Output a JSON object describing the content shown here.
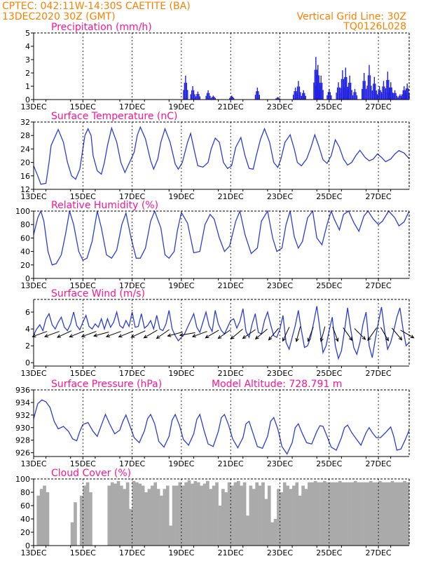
{
  "header": {
    "line1_left": "CPTEC:  042:11W-14:30S  CAETITE (BA)",
    "line2_left": "13DEC2020 30Z (GMT)",
    "line1_right": "Vertical Grid Line: 30Z",
    "line2_right": "TQ0126L028"
  },
  "colors": {
    "line": "#2b3fd6",
    "bars": "#2020e0",
    "cloud": "#aaaaaa",
    "arrow": "#000000",
    "title": "#ff1493",
    "header": "#ff8000"
  },
  "chart_data": [
    {
      "id": "precip",
      "type": "bar",
      "title": "Precipitation (mm/h)",
      "ylim": [
        0,
        5
      ],
      "yticks": [
        "0",
        "1",
        "2",
        "3",
        "4",
        "5"
      ],
      "xlim": [
        0,
        366
      ],
      "xtick_pos": [
        0,
        48,
        96,
        144,
        192,
        240,
        288,
        336
      ],
      "xtick_labels": [
        "13DEC",
        "15DEC",
        "17DEC",
        "19DEC",
        "21DEC",
        "23DEC",
        "25DEC",
        "27DEC"
      ],
      "peaks": [
        [
          148,
          1.8
        ],
        [
          155,
          1.0
        ],
        [
          160,
          0.6
        ],
        [
          170,
          0.7
        ],
        [
          175,
          0.3
        ],
        [
          193,
          0.3
        ],
        [
          218,
          0.9
        ],
        [
          238,
          0.2
        ],
        [
          255,
          0.9
        ],
        [
          258,
          1.4
        ],
        [
          263,
          0.7
        ],
        [
          275,
          3.2
        ],
        [
          277,
          2.6
        ],
        [
          280,
          1.8
        ],
        [
          288,
          0.8
        ],
        [
          297,
          1.3
        ],
        [
          301,
          2.2
        ],
        [
          304,
          2.4
        ],
        [
          308,
          1.8
        ],
        [
          313,
          0.8
        ],
        [
          322,
          2.0
        ],
        [
          327,
          2.6
        ],
        [
          332,
          1.7
        ],
        [
          337,
          1.0
        ],
        [
          341,
          1.4
        ],
        [
          345,
          2.1
        ],
        [
          348,
          1.3
        ],
        [
          352,
          0.7
        ],
        [
          357,
          0.4
        ],
        [
          361,
          1.0
        ],
        [
          364,
          1.2
        ]
      ]
    },
    {
      "id": "temp",
      "type": "line",
      "title": "Surface Temperature (nC)",
      "ylim": [
        12,
        32
      ],
      "yticks": [
        "12",
        "16",
        "20",
        "24",
        "28",
        "32"
      ],
      "xlim": [
        0,
        366
      ],
      "xtick_pos": [
        0,
        48,
        96,
        144,
        192,
        240,
        288,
        336
      ],
      "xtick_labels": [
        "13DEC",
        "15DEC",
        "17DEC",
        "19DEC",
        "21DEC",
        "23DEC",
        "25DEC",
        "27DEC"
      ],
      "x": [
        0,
        4,
        7,
        12,
        15,
        17,
        24,
        29,
        33,
        37,
        41,
        45,
        48,
        50,
        53,
        56,
        58,
        62,
        66,
        69,
        72,
        76,
        81,
        85,
        89,
        92,
        98,
        101,
        104,
        109,
        114,
        117,
        121,
        124,
        128,
        133,
        138,
        141,
        145,
        150,
        153,
        157,
        160,
        165,
        170,
        173,
        177,
        181,
        185,
        189,
        193,
        197,
        202,
        206,
        210,
        214,
        217,
        221,
        225,
        230,
        234,
        238,
        241,
        245,
        250,
        254,
        257,
        261,
        266,
        270,
        274,
        278,
        282,
        286,
        290,
        294,
        298,
        302,
        306,
        310,
        314,
        318,
        323,
        327,
        331,
        335,
        339,
        343,
        348,
        352,
        356,
        361,
        366
      ],
      "y": [
        19,
        16,
        13.5,
        13.8,
        20,
        25,
        29.8,
        26,
        20,
        16,
        15,
        18,
        24,
        28,
        30,
        28,
        22,
        17.5,
        16.5,
        20,
        25,
        30.2,
        26,
        20,
        17,
        19,
        23,
        28,
        30.5,
        27,
        20.5,
        18,
        21,
        26,
        30,
        26,
        19.5,
        18,
        20,
        26,
        28.6,
        23,
        19,
        18.6,
        20,
        24,
        27.2,
        26,
        20,
        18.2,
        19,
        24.5,
        27.4,
        22,
        18.2,
        18,
        22,
        26.8,
        30,
        26,
        20,
        18.5,
        21,
        26,
        28.2,
        24,
        20,
        19,
        21,
        24.2,
        28.2,
        24.8,
        20.8,
        19.7,
        22,
        26.7,
        24.5,
        21,
        19.2,
        20,
        22,
        23.6,
        21.5,
        20.5,
        21,
        22.5,
        21.5,
        20.2,
        21,
        22.5,
        23.5,
        22.8,
        21.1
      ]
    },
    {
      "id": "rh",
      "type": "line",
      "title": "Relative Humidity (%)",
      "ylim": [
        0,
        100
      ],
      "yticks": [
        "0",
        "20",
        "40",
        "60",
        "80",
        "100"
      ],
      "xlim": [
        0,
        366
      ],
      "xtick_pos": [
        0,
        48,
        96,
        144,
        192,
        240,
        288,
        336
      ],
      "xtick_labels": [
        "13DEC",
        "15DEC",
        "17DEC",
        "19DEC",
        "21DEC",
        "23DEC",
        "25DEC",
        "27DEC"
      ],
      "x": [
        0,
        4,
        7,
        10,
        14,
        18,
        22,
        27,
        31,
        35,
        39,
        44,
        48,
        52,
        57,
        62,
        66,
        71,
        76,
        81,
        86,
        90,
        95,
        100,
        104,
        109,
        114,
        118,
        124,
        128,
        132,
        137,
        140,
        144,
        150,
        156,
        162,
        167,
        172,
        176,
        181,
        186,
        191,
        197,
        201,
        206,
        212,
        218,
        222,
        228,
        233,
        237,
        242,
        246,
        250,
        254,
        258,
        262,
        267,
        272,
        276,
        281,
        286,
        290,
        293,
        298,
        302,
        307,
        312,
        317,
        322,
        326,
        331,
        336,
        340,
        346,
        352,
        356,
        361,
        366
      ],
      "y": [
        65,
        90,
        100,
        85,
        40,
        20,
        22,
        35,
        65,
        100,
        80,
        40,
        27,
        30,
        55,
        100,
        75,
        35,
        30,
        42,
        80,
        97,
        60,
        30,
        30,
        45,
        85,
        100,
        75,
        35,
        30,
        40,
        70,
        98,
        82,
        38,
        40,
        80,
        95,
        88,
        60,
        40,
        48,
        85,
        100,
        65,
        37,
        45,
        85,
        100,
        60,
        40,
        45,
        80,
        100,
        62,
        45,
        55,
        90,
        100,
        60,
        50,
        80,
        100,
        88,
        72,
        95,
        100,
        83,
        70,
        93,
        100,
        88,
        80,
        85,
        100,
        90,
        78,
        84,
        100
      ]
    },
    {
      "id": "wind",
      "type": "line",
      "title": "Surface Wind (m/s)",
      "ylim": [
        -0.4,
        7.5
      ],
      "yticks": [
        "0",
        "2",
        "4",
        "6"
      ],
      "ytick_vals": [
        0,
        2,
        4,
        6
      ],
      "xlim": [
        0,
        366
      ],
      "xtick_pos": [
        0,
        48,
        96,
        144,
        192,
        240,
        288,
        336
      ],
      "xtick_labels": [
        "13DEC",
        "15DEC",
        "17DEC",
        "19DEC",
        "21DEC",
        "23DEC",
        "25DEC",
        "27DEC"
      ],
      "x": [
        0,
        3,
        6,
        9,
        12,
        15,
        18,
        21,
        24,
        27,
        30,
        33,
        36,
        39,
        42,
        45,
        48,
        51,
        54,
        57,
        60,
        63,
        66,
        69,
        72,
        75,
        78,
        81,
        84,
        87,
        90,
        93,
        96,
        99,
        102,
        105,
        108,
        111,
        114,
        117,
        120,
        123,
        126,
        129,
        132,
        135,
        138,
        141,
        144,
        147,
        150,
        153,
        156,
        159,
        162,
        165,
        168,
        171,
        174,
        177,
        180,
        183,
        186,
        189,
        192,
        195,
        198,
        201,
        204,
        207,
        210,
        213,
        216,
        219,
        222,
        225,
        228,
        231,
        234,
        237,
        240,
        243,
        246,
        249,
        252,
        255,
        258,
        261,
        264,
        267,
        270,
        273,
        276,
        279,
        282,
        285,
        288,
        291,
        294,
        297,
        300,
        303,
        306,
        309,
        312,
        315,
        318,
        321,
        324,
        327,
        330,
        333,
        336,
        339,
        342,
        345,
        348,
        351,
        354,
        357,
        360,
        363,
        366
      ],
      "y": [
        3.3,
        4.0,
        4.5,
        3.8,
        5.2,
        5.8,
        4.5,
        4.0,
        4.8,
        5.4,
        4.2,
        3.8,
        4.6,
        6.0,
        4.4,
        3.9,
        4.8,
        5.6,
        4.3,
        4.0,
        4.6,
        4.2,
        5.2,
        4.0,
        5.2,
        4.2,
        4.8,
        6.0,
        4.4,
        4.1,
        5.0,
        4.3,
        6.0,
        4.2,
        4.3,
        5.8,
        4.1,
        4.4,
        5.0,
        4.0,
        5.6,
        4.0,
        3.8,
        4.6,
        6.2,
        4.0,
        3.2,
        2.6,
        3.0,
        3.4,
        4.2,
        5.0,
        5.8,
        4.2,
        3.6,
        4.8,
        6.0,
        4.4,
        3.7,
        6.2,
        4.6,
        3.8,
        3.4,
        4.2,
        5.0,
        5.2,
        4.1,
        4.9,
        6.4,
        3.7,
        3.0,
        4.6,
        5.8,
        3.6,
        3.4,
        5.0,
        6.0,
        4.5,
        3.2,
        3.0,
        4.0,
        5.6,
        2.4,
        1.6,
        3.0,
        4.4,
        6.2,
        3.8,
        1.8,
        2.0,
        3.0,
        4.8,
        6.7,
        4.0,
        1.2,
        2.0,
        3.8,
        5.4,
        2.0,
        0.5,
        1.4,
        3.8,
        6.5,
        4.0,
        1.8,
        1.0,
        2.4,
        4.6,
        6.0,
        2.0,
        0.6,
        2.8,
        4.8,
        6.6,
        3.8,
        1.6,
        2.4,
        3.8,
        5.4,
        6.5,
        4.0,
        2.0,
        2.4
      ],
      "arrows_x": [
        6,
        18,
        30,
        42,
        54,
        66,
        78,
        90,
        102,
        114,
        126,
        138,
        150,
        162,
        174,
        186,
        198,
        210,
        222,
        234,
        246,
        258,
        270,
        282,
        294,
        306,
        318,
        330,
        342,
        354,
        364
      ],
      "arrows_dir": [
        250,
        250,
        245,
        248,
        250,
        255,
        250,
        248,
        245,
        240,
        235,
        255,
        260,
        250,
        240,
        235,
        230,
        235,
        230,
        220,
        205,
        195,
        200,
        195,
        160,
        145,
        135,
        215,
        150,
        140,
        120
      ]
    },
    {
      "id": "pres",
      "type": "line",
      "title": "Surface Pressure (hPa)",
      "annotation": "Model Altitude: 728.791 m",
      "ylim": [
        925.4,
        936
      ],
      "yticks": [
        "926",
        "928",
        "930",
        "932",
        "934",
        "936"
      ],
      "ytick_vals": [
        926,
        928,
        930,
        932,
        934,
        936
      ],
      "xlim": [
        0,
        366
      ],
      "xtick_pos": [
        0,
        48,
        96,
        144,
        192,
        240,
        288,
        336
      ],
      "xtick_labels": [
        "13DEC",
        "15DEC",
        "17DEC",
        "19DEC",
        "21DEC",
        "23DEC",
        "25DEC",
        "27DEC"
      ],
      "x": [
        0,
        4,
        8,
        12,
        16,
        20,
        24,
        29,
        34,
        38,
        42,
        45,
        48,
        53,
        58,
        62,
        66,
        70,
        74,
        79,
        84,
        87,
        90,
        94,
        98,
        103,
        108,
        111,
        114,
        118,
        122,
        127,
        132,
        135,
        138,
        142,
        146,
        151,
        156,
        159,
        162,
        166,
        170,
        175,
        180,
        183,
        186,
        190,
        194,
        199,
        204,
        207,
        210,
        214,
        218,
        223,
        228,
        231,
        234,
        238,
        242,
        247,
        252,
        255,
        258,
        262,
        266,
        271,
        276,
        279,
        282,
        286,
        290,
        295,
        300,
        303,
        306,
        310,
        314,
        319,
        324,
        327,
        330,
        334,
        338,
        343,
        348,
        351,
        354,
        358,
        362,
        366
      ],
      "y": [
        931.4,
        933.8,
        934.4,
        934.1,
        933.2,
        931.0,
        929.8,
        930.2,
        929.4,
        928.2,
        927.9,
        929.4,
        930.5,
        930.8,
        929.4,
        928.6,
        930.4,
        932.1,
        930.6,
        929.0,
        929.6,
        931.0,
        932.0,
        930.2,
        928.4,
        927.6,
        929.5,
        931.4,
        932.1,
        930.6,
        927.8,
        926.9,
        928.6,
        931.2,
        932.1,
        930.4,
        928.1,
        927.2,
        929.0,
        931.3,
        932.1,
        929.6,
        927.4,
        927.0,
        929.4,
        931.6,
        932.1,
        930.4,
        928.2,
        926.8,
        928.4,
        930.6,
        931.0,
        929.0,
        927.0,
        926.7,
        928.6,
        931.0,
        931.6,
        929.8,
        927.0,
        925.8,
        927.6,
        930.0,
        930.6,
        929.0,
        927.6,
        927.4,
        929.4,
        930.3,
        930.2,
        928.6,
        926.9,
        926.4,
        928.4,
        930.0,
        930.4,
        929.2,
        928.3,
        927.2,
        929.2,
        930.0,
        929.2,
        928.4,
        928.4,
        929.2,
        930.1,
        928.6,
        926.4,
        926.6,
        928.0,
        929.6
      ]
    },
    {
      "id": "cloud",
      "type": "bar",
      "title": "Cloud Cover (%)",
      "ylim": [
        0,
        100
      ],
      "yticks": [
        "0",
        "20",
        "40",
        "60",
        "80",
        "100"
      ],
      "xlim": [
        0,
        366
      ],
      "xtick_pos": [
        0,
        48,
        96,
        144,
        192,
        240,
        288,
        336
      ],
      "xtick_labels": [
        "13DEC",
        "15DEC",
        "17DEC",
        "19DEC",
        "21DEC",
        "23DEC",
        "25DEC",
        "27DEC"
      ],
      "x": [
        0,
        3,
        6,
        9,
        12,
        15,
        18,
        21,
        24,
        27,
        30,
        33,
        36,
        39,
        42,
        45,
        48,
        51,
        54,
        57,
        60,
        63,
        66,
        69,
        72,
        75,
        78,
        81,
        84,
        87,
        90,
        93,
        96,
        99,
        102,
        105,
        108,
        111,
        114,
        117,
        120,
        123,
        126,
        129,
        132,
        135,
        138,
        141,
        144,
        147,
        150,
        153,
        156,
        159,
        162,
        165,
        168,
        171,
        174,
        177,
        180,
        183,
        186,
        189,
        192,
        195,
        198,
        201,
        204,
        207,
        210,
        213,
        216,
        219,
        222,
        225,
        228,
        231,
        234,
        237,
        240,
        243,
        246,
        249,
        252,
        255,
        258,
        261,
        264,
        267,
        270,
        273,
        276,
        279,
        282,
        285,
        288,
        291,
        294,
        297,
        300,
        303,
        306,
        309,
        312,
        315,
        318,
        321,
        324,
        327,
        330,
        333,
        336,
        339,
        342,
        345,
        348,
        351,
        354,
        357,
        360,
        363
      ],
      "values": [
        0,
        75,
        85,
        90,
        80,
        0,
        0,
        0,
        0,
        0,
        0,
        0,
        35,
        65,
        0,
        75,
        90,
        95,
        80,
        0,
        0,
        0,
        0,
        0,
        90,
        95,
        93,
        97,
        90,
        85,
        95,
        55,
        97,
        95,
        93,
        90,
        80,
        85,
        90,
        95,
        85,
        75,
        85,
        90,
        30,
        90,
        90,
        95,
        90,
        95,
        98,
        93,
        97,
        95,
        90,
        93,
        97,
        85,
        90,
        95,
        60,
        85,
        80,
        95,
        90,
        95,
        97,
        90,
        95,
        45,
        90,
        85,
        95,
        90,
        95,
        70,
        90,
        35,
        40,
        85,
        80,
        95,
        90,
        85,
        90,
        95,
        75,
        90,
        85,
        95,
        95,
        97,
        95,
        95,
        97,
        95,
        95,
        95,
        95,
        97,
        95,
        95,
        95,
        95,
        97,
        95,
        95,
        95,
        95,
        97,
        95,
        95,
        97,
        95,
        95,
        95,
        97,
        95,
        95,
        95,
        97,
        95
      ]
    }
  ]
}
